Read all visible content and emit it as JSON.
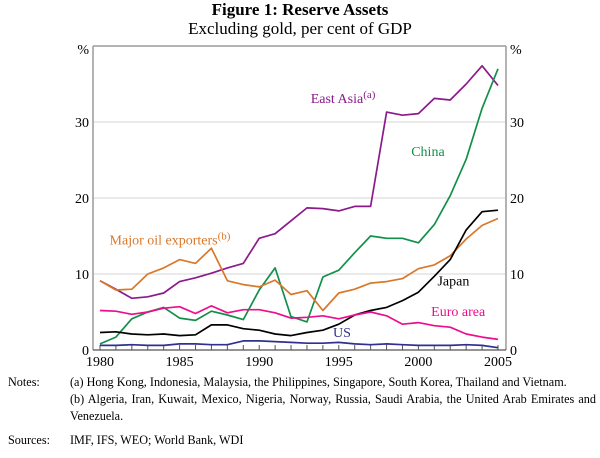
{
  "chart_data": {
    "type": "line",
    "title": "Figure 1: Reserve Assets",
    "subtitle": "Excluding gold, per cent of GDP",
    "xlabel": "",
    "ylabel_left": "%",
    "ylabel_right": "%",
    "xlim": [
      1980,
      2005
    ],
    "ylim": [
      0,
      40
    ],
    "x_ticks": [
      1980,
      1985,
      1990,
      1995,
      2000,
      2005
    ],
    "y_ticks": [
      0,
      10,
      20,
      30
    ],
    "grid": true,
    "x": [
      1980,
      1981,
      1982,
      1983,
      1984,
      1985,
      1986,
      1987,
      1988,
      1989,
      1990,
      1991,
      1992,
      1993,
      1994,
      1995,
      1996,
      1997,
      1998,
      1999,
      2000,
      2001,
      2002,
      2003,
      2004,
      2005
    ],
    "series": [
      {
        "name": "East Asia",
        "label": "East Asia",
        "superscript": "(a)",
        "color": "#8B1A8B",
        "values": [
          9.1,
          8.0,
          6.8,
          7.0,
          7.5,
          9.0,
          9.5,
          10.1,
          10.8,
          11.4,
          14.7,
          15.3,
          17.0,
          18.7,
          18.6,
          18.3,
          18.9,
          18.9,
          31.3,
          30.9,
          31.1,
          33.1,
          32.9,
          35.0,
          37.4,
          34.8
        ]
      },
      {
        "name": "China",
        "label": "China",
        "superscript": "",
        "color": "#12904A",
        "values": [
          0.8,
          1.7,
          4.1,
          5.0,
          5.6,
          4.2,
          3.9,
          5.1,
          4.6,
          4.0,
          7.9,
          10.8,
          4.4,
          3.7,
          9.6,
          10.5,
          12.8,
          15.0,
          14.7,
          14.7,
          14.1,
          16.5,
          20.3,
          25.1,
          31.8,
          37.0
        ]
      },
      {
        "name": "Major oil exporters",
        "label": "Major oil exporters",
        "superscript": "(b)",
        "color": "#D8782A",
        "values": [
          9.1,
          7.9,
          8.0,
          10.0,
          10.8,
          11.9,
          11.4,
          13.4,
          9.1,
          8.6,
          8.3,
          9.2,
          7.3,
          7.8,
          5.2,
          7.5,
          8.0,
          8.8,
          9.0,
          9.4,
          10.7,
          11.2,
          12.4,
          14.6,
          16.4,
          17.3
        ]
      },
      {
        "name": "Japan",
        "label": "Japan",
        "superscript": "",
        "color": "#000000",
        "values": [
          2.3,
          2.4,
          2.1,
          2.0,
          2.1,
          1.9,
          2.0,
          3.3,
          3.3,
          2.8,
          2.6,
          2.1,
          1.9,
          2.3,
          2.6,
          3.4,
          4.6,
          5.2,
          5.6,
          6.5,
          7.6,
          9.7,
          11.9,
          15.8,
          18.2,
          18.4
        ]
      },
      {
        "name": "Euro area",
        "label": "Euro area",
        "superscript": "",
        "color": "#EC0E8C",
        "values": [
          5.2,
          5.1,
          4.7,
          5.0,
          5.5,
          5.7,
          4.8,
          5.8,
          4.9,
          5.3,
          5.3,
          4.9,
          4.2,
          4.3,
          4.5,
          4.1,
          4.6,
          5.0,
          4.5,
          3.4,
          3.6,
          3.2,
          3.0,
          2.1,
          1.7,
          1.4
        ]
      },
      {
        "name": "US",
        "label": "US",
        "superscript": "",
        "color": "#2E3192",
        "values": [
          0.6,
          0.6,
          0.7,
          0.6,
          0.6,
          0.8,
          0.8,
          0.7,
          0.7,
          1.2,
          1.2,
          1.1,
          1.0,
          0.9,
          0.9,
          1.0,
          0.8,
          0.7,
          0.8,
          0.7,
          0.6,
          0.6,
          0.6,
          0.7,
          0.6,
          0.3
        ]
      }
    ],
    "annotations": [
      {
        "series": "East Asia",
        "year": 1997.3,
        "value": 32.5,
        "anchor": "end"
      },
      {
        "series": "China",
        "year": 2000.6,
        "value": 25.5,
        "anchor": "middle"
      },
      {
        "series": "Major oil exporters",
        "year": 1980.6,
        "value": 13.9,
        "anchor": "start"
      },
      {
        "series": "Japan",
        "year": 2002.2,
        "value": 8.5,
        "anchor": "middle"
      },
      {
        "series": "Euro area",
        "year": 2002.5,
        "value": 4.5,
        "anchor": "middle"
      },
      {
        "series": "US",
        "year": 1995.2,
        "value": 1.7,
        "anchor": "middle"
      }
    ]
  },
  "notes": {
    "notes_label": "Notes:",
    "note_a": "(a) Hong Kong, Indonesia, Malaysia, the Philippines, Singapore, South Korea, Thailand and Vietnam.",
    "note_b": "(b) Algeria, Iran, Kuwait, Mexico, Nigeria, Norway, Russia, Saudi Arabia, the United Arab Emirates and Venezuela.",
    "sources_label": "Sources:",
    "sources": "IMF, IFS, WEO; World Bank, WDI"
  }
}
